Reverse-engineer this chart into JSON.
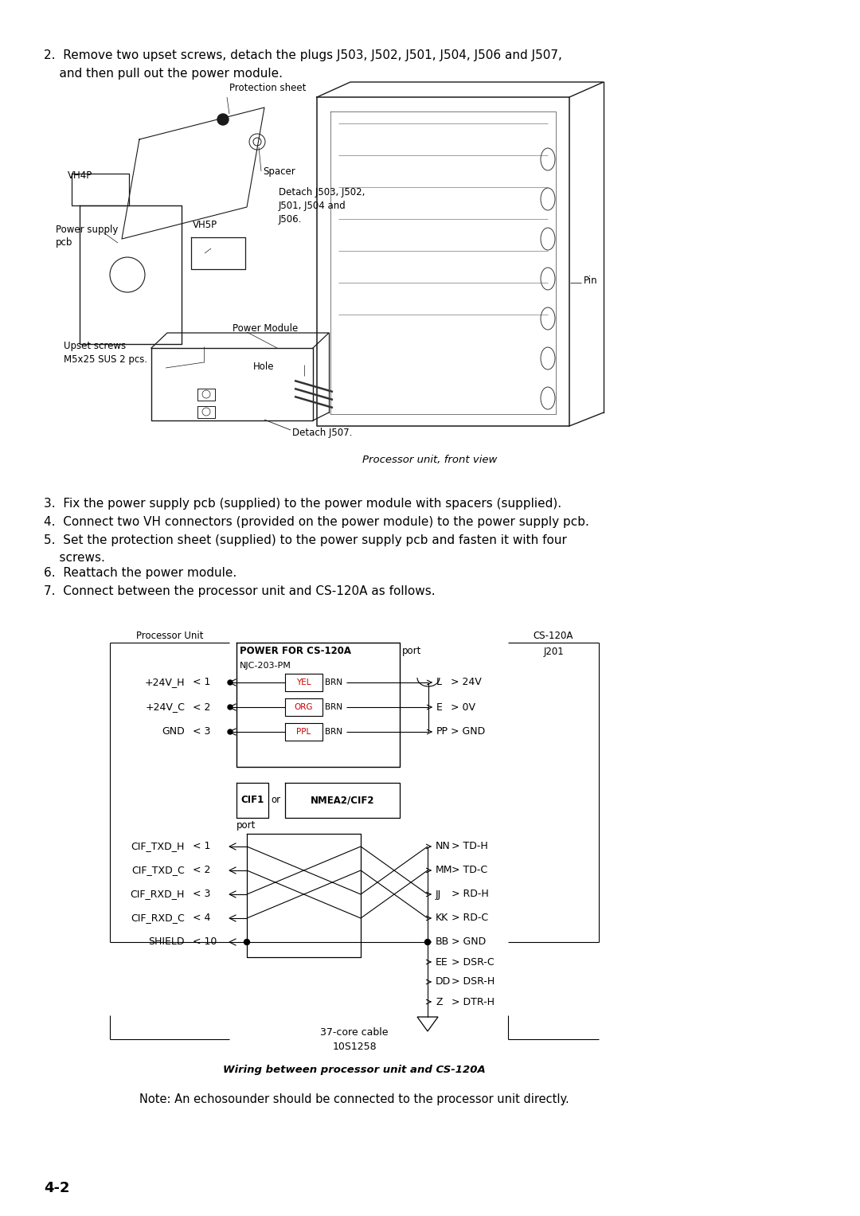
{
  "page_bg": "#ffffff",
  "fig_caption": "Processor unit, front view",
  "wiring_caption": "Wiring between processor unit and CS-120A",
  "note_text": "Note: An echosounder should be connected to the processor unit directly.",
  "page_number": "4-2",
  "step2_line1": "2.  Remove two upset screws, detach the plugs J503, J502, J501, J504, J506 and J507,",
  "step2_line2": "    and then pull out the power module.",
  "steps": [
    "3.  Fix the power supply pcb (supplied) to the power module with spacers (supplied).",
    "4.  Connect two VH connectors (provided on the power module) to the power supply pcb.",
    "5.  Set the protection sheet (supplied) to the power supply pcb and fasten it with four",
    "    screws.",
    "6.  Reattach the power module.",
    "7.  Connect between the processor unit and CS-120A as follows."
  ],
  "cable_line1": "37-core cable",
  "cable_line2": "10S1258",
  "diag": {
    "protection_sheet": "Protection sheet",
    "vh4p": "VH4P",
    "spacer": "Spacer",
    "power_supply_1": "Power supply",
    "power_supply_2": "pcb",
    "vh5p": "VH5P",
    "detach1": "Detach J503, J502,",
    "detach2": "J501, J504 and",
    "detach3": "J506.",
    "power_module": "Power Module",
    "upset1": "Upset screws",
    "upset2": "M5x25 SUS 2 pcs.",
    "hole": "Hole",
    "pin": "Pin",
    "detach_j507": "Detach J507."
  },
  "pwr": {
    "box_title": "POWER FOR CS-120A",
    "port": "port",
    "model": "NJC-203-PM",
    "proc_unit": "Processor Unit",
    "cs120a": "CS-120A",
    "j201": "J201",
    "left_sigs": [
      "+24V_H",
      "+24V_C",
      "GND"
    ],
    "left_pins": [
      "< 1",
      "< 2",
      "< 3"
    ],
    "wire_labels": [
      "YEL",
      "ORG",
      "PPL"
    ],
    "brn": "BRN",
    "right_sigs": [
      "L",
      "E",
      "PP"
    ],
    "right_vals": [
      "24V",
      "0V",
      "GND"
    ]
  },
  "cif": {
    "cif1": "CIF1",
    "or": "or",
    "nmea": "NMEA2/CIF2",
    "port": "port",
    "left_sigs": [
      "CIF_TXD_H",
      "CIF_TXD_C",
      "CIF_RXD_H",
      "CIF_RXD_C",
      "SHIELD"
    ],
    "left_pins": [
      "< 1",
      "< 2",
      "< 3",
      "< 4",
      "< 10"
    ],
    "right_sigs": [
      "NN",
      "MM",
      "JJ",
      "KK",
      "BB",
      "EE",
      "DD",
      "Z"
    ],
    "right_vals": [
      "TD-H",
      "TD-C",
      "RD-H",
      "RD-C",
      "GND",
      "DSR-C",
      "DSR-H",
      "DTR-H"
    ]
  }
}
